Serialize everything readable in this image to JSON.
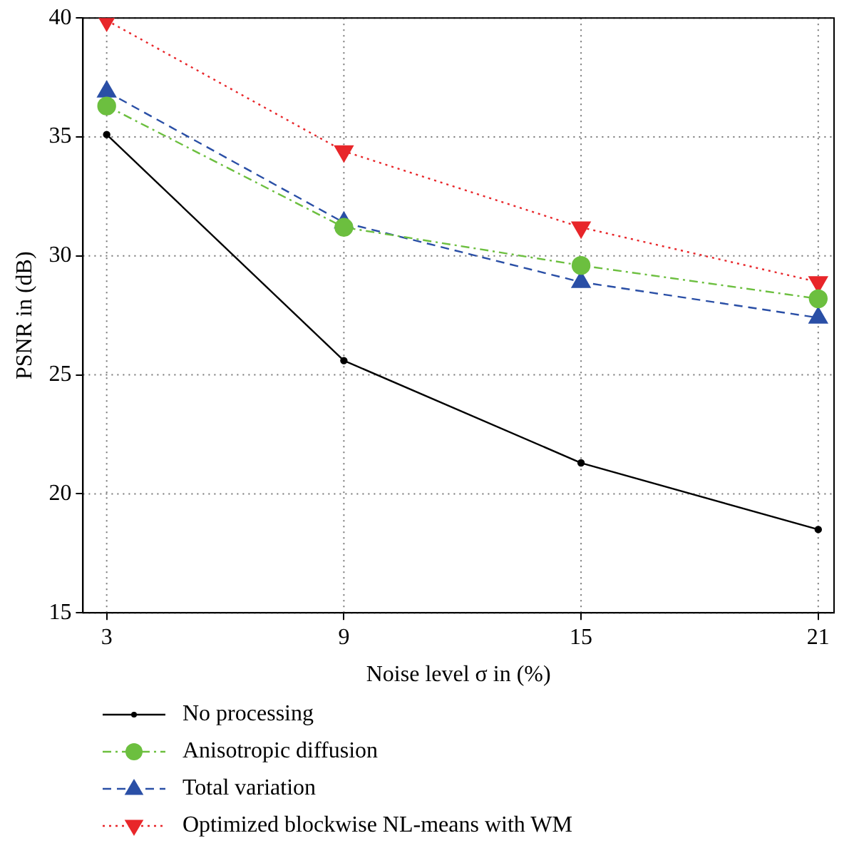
{
  "chart_data": {
    "type": "line",
    "xlabel": "Noise level σ in (%)",
    "ylabel": "PSNR in (dB)",
    "x": [
      3,
      9,
      15,
      21
    ],
    "series": [
      {
        "name": "No processing",
        "color": "#000000",
        "values": [
          35.1,
          25.6,
          21.3,
          18.5
        ],
        "marker": "dot",
        "line_style": "solid"
      },
      {
        "name": "Anisotropic diffusion",
        "color": "#6cbf3f",
        "values": [
          36.3,
          31.2,
          29.6,
          28.2
        ],
        "marker": "circle",
        "line_style": "dashdot"
      },
      {
        "name": "Total variation",
        "color": "#2a4fa6",
        "values": [
          36.9,
          31.4,
          28.9,
          27.4
        ],
        "marker": "triangle",
        "line_style": "dashed"
      },
      {
        "name": "Optimized blockwise NL-means with WM",
        "color": "#e8262a",
        "values": [
          39.9,
          34.4,
          31.2,
          28.9
        ],
        "marker": "triangle_down",
        "line_style": "dotted"
      }
    ],
    "xlim": [
      2.4,
      21.4
    ],
    "xticks": [
      3,
      9,
      15,
      21
    ],
    "ylim": [
      15,
      40
    ],
    "yticks": [
      15,
      20,
      25,
      30,
      35,
      40
    ],
    "grid": true,
    "legend": "bottom"
  }
}
